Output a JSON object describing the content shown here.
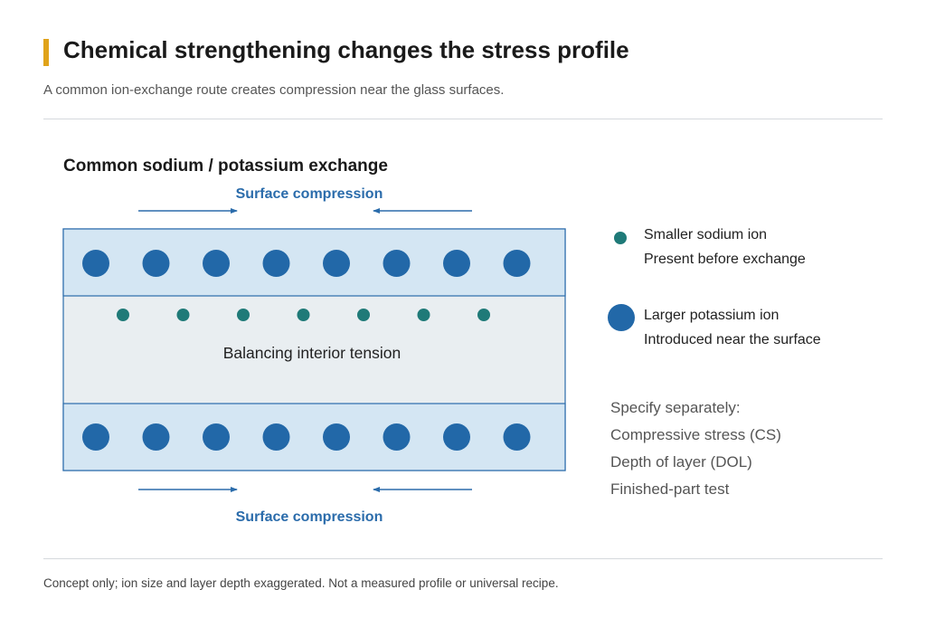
{
  "header": {
    "title": "Chemical strengthening changes the stress profile",
    "subtitle": "A common ion-exchange route creates compression near the glass surfaces."
  },
  "diagram": {
    "heading": "Common sodium / potassium exchange",
    "top_label": "Surface compression",
    "bottom_label": "Surface compression",
    "interior_label": "Balancing interior tension",
    "top_layer_ion_count": 8,
    "interior_ion_count": 7,
    "bottom_layer_ion_count": 8
  },
  "legend": {
    "small_ion": {
      "line1": "Smaller sodium ion",
      "line2": "Present before exchange"
    },
    "large_ion": {
      "line1": "Larger potassium ion",
      "line2": "Introduced near the surface"
    }
  },
  "specify": {
    "heading": "Specify separately:",
    "items": [
      "Compressive stress (CS)",
      "Depth of layer (DOL)",
      "Finished-part test"
    ]
  },
  "footer": {
    "note": "Concept only; ion size and layer depth exaggerated. Not a measured profile or universal recipe."
  },
  "colors": {
    "accent": "#e0a31a",
    "potassium_ion": "#2268a8",
    "sodium_ion": "#1f7a78",
    "compression_layer": "#d4e6f3",
    "interior": "#e9eef1",
    "label_blue": "#2b6cab",
    "arrow": "#2b6cab"
  }
}
